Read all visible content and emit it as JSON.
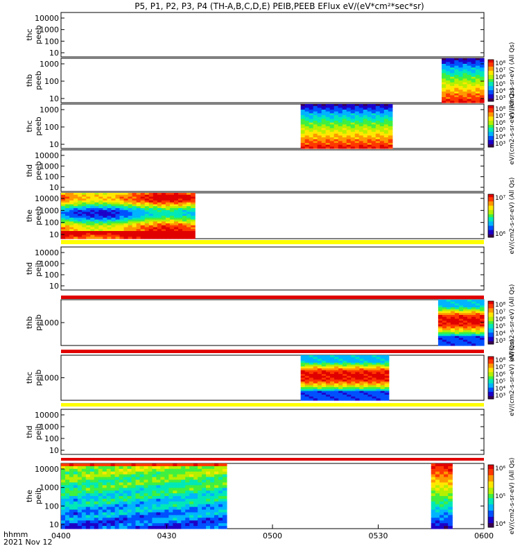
{
  "title": "P5, P1, P2, P3, P4 (TH-A,B,C,D,E) PEIB,PEEB EFlux eV/(eV*cm²*sec*sr)",
  "time_axis": {
    "label_line1": "hhmm",
    "label_line2": "2021 Nov 12",
    "range": [
      "0400",
      "0600"
    ],
    "ticks": [
      "0400",
      "0430",
      "0500",
      "0530",
      "0600"
    ]
  },
  "colors": {
    "spectrum": [
      "#3b0050",
      "#1d00c8",
      "#0050ff",
      "#00b4ff",
      "#00e8b8",
      "#40f040",
      "#b4f000",
      "#ffe800",
      "#ff9800",
      "#ff3800",
      "#e00000"
    ]
  },
  "chart_data": [
    {
      "type": "heatmap",
      "ylabel": [
        "thc",
        "peeb"
      ],
      "yticks": [
        "10000",
        "1000",
        "100",
        "10"
      ],
      "y_scale": "log",
      "ylim": [
        5,
        30000
      ],
      "data_intervals": [],
      "colorbar": null
    },
    {
      "type": "heatmap",
      "ylabel": [
        "thb",
        "peeb"
      ],
      "yticks": [
        "1000",
        "100",
        "10"
      ],
      "y_scale": "log",
      "data_intervals": [
        {
          "start": "0548",
          "end": "0600",
          "pattern": "electron"
        }
      ],
      "colorbar": {
        "ticks": [
          "10⁸",
          "10⁷",
          "10⁶",
          "10⁵",
          "10⁴",
          "10³"
        ],
        "label": "eV/(cm2-s-sr-eV) (All Qs)"
      }
    },
    {
      "type": "heatmap",
      "ylabel": [
        "thc",
        "peeb"
      ],
      "yticks": [
        "1000",
        "100",
        "10"
      ],
      "y_scale": "log",
      "data_intervals": [
        {
          "start": "0508",
          "end": "0534",
          "pattern": "electron"
        }
      ],
      "colorbar": {
        "ticks": [
          "10⁸",
          "10⁷",
          "10⁶",
          "10⁵",
          "10⁴",
          "10³"
        ],
        "label": "eV/(cm2-s-sr-eV) (All Qs)"
      }
    },
    {
      "type": "heatmap",
      "ylabel": [
        "thd",
        "peeb"
      ],
      "yticks": [
        "10000",
        "1000",
        "100",
        "10"
      ],
      "y_scale": "log",
      "data_intervals": [],
      "colorbar": null
    },
    {
      "type": "heatmap",
      "ylabel": [
        "the",
        "peeb"
      ],
      "yticks": [
        "10000",
        "1000",
        "100",
        "10"
      ],
      "y_scale": "log",
      "data_intervals": [
        {
          "start": "0400",
          "end": "0438",
          "pattern": "banded"
        }
      ],
      "colorbar": {
        "ticks": [
          "10⁷",
          "10⁶"
        ],
        "label": "eV/(cm2-s-sr-eV) (All Qs)"
      }
    },
    {
      "type": "heatmap",
      "ylabel": [
        "thd",
        "peib"
      ],
      "yticks": [
        "10000",
        "1000",
        "100",
        "10"
      ],
      "y_scale": "log",
      "data_intervals": [],
      "colorbar": null
    },
    {
      "type": "heatmap",
      "ylabel": [
        "thb",
        "peib"
      ],
      "yticks": [
        "1000"
      ],
      "y_scale": "log",
      "data_intervals": [
        {
          "start": "0547",
          "end": "0600",
          "pattern": "ion"
        }
      ],
      "colorbar": {
        "ticks": [
          "10⁸",
          "10⁷",
          "10⁶",
          "10⁵",
          "10⁴",
          "10³"
        ],
        "label": "eV/(cm2-s-sr-eV) (All Qs)"
      }
    },
    {
      "type": "heatmap",
      "ylabel": [
        "thc",
        "peib"
      ],
      "yticks": [
        "1000"
      ],
      "y_scale": "log",
      "data_intervals": [
        {
          "start": "0508",
          "end": "0533",
          "pattern": "ion"
        }
      ],
      "colorbar": {
        "ticks": [
          "10⁸",
          "10⁷",
          "10⁶",
          "10⁵",
          "10⁴",
          "10³"
        ],
        "label": "eV/(cm2-s-sr-eV) (All Qs)"
      }
    },
    {
      "type": "heatmap",
      "ylabel": [
        "thd",
        "peib"
      ],
      "yticks": [
        "10000",
        "1000",
        "100",
        "10"
      ],
      "y_scale": "log",
      "data_intervals": [],
      "colorbar": null
    },
    {
      "type": "heatmap",
      "ylabel": [
        "the",
        "peib"
      ],
      "yticks": [
        "10000",
        "1000",
        "100",
        "10"
      ],
      "y_scale": "log",
      "data_intervals": [
        {
          "start": "0400",
          "end": "0447",
          "pattern": "ion_low"
        },
        {
          "start": "0545",
          "end": "0551",
          "pattern": "ion_column"
        }
      ],
      "colorbar": {
        "ticks": [
          "10⁶",
          "10⁵",
          "10⁴"
        ],
        "label": "eV/(cm2-s-sr-eV) (All Qs)"
      }
    }
  ],
  "status_bars": [
    {
      "after_panel": 4,
      "color": "#ffff00"
    },
    {
      "after_panel": 5,
      "color": "#e00000"
    },
    {
      "after_panel": 6,
      "color": "#e00000"
    },
    {
      "after_panel": 7,
      "color": "#ffff00"
    },
    {
      "after_panel": 8,
      "color": "#e00000"
    }
  ]
}
